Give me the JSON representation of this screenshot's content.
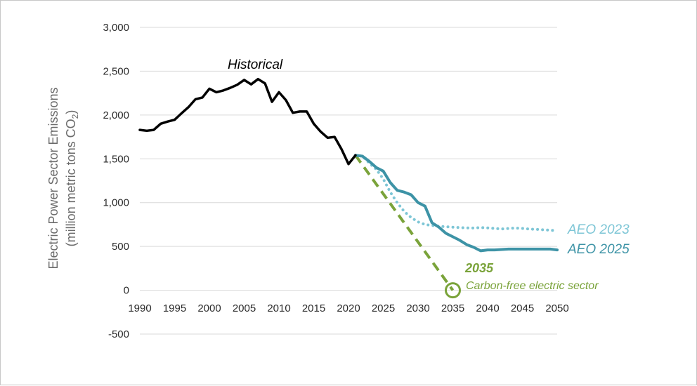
{
  "chart_data": {
    "type": "line",
    "title": "",
    "xlabel": "",
    "ylabel_line1": "Electric Power Sector Emissions",
    "ylabel_line2_prefix": "(million metric tons CO",
    "ylabel_line2_sub": "2",
    "ylabel_line2_suffix": ")",
    "xlim": [
      1990,
      2050
    ],
    "ylim": [
      -500,
      3000
    ],
    "x_ticks": [
      "1990",
      "1995",
      "2000",
      "2005",
      "2010",
      "2015",
      "2020",
      "2025",
      "2030",
      "2035",
      "2040",
      "2045",
      "2050"
    ],
    "y_ticks": [
      "-500",
      "0",
      "500",
      "1,000",
      "1,500",
      "2,000",
      "2,500",
      "3,000"
    ],
    "grid": true,
    "annotations": {
      "historical": "Historical",
      "aeo2023": "AEO 2023",
      "aeo2025": "AEO 2025",
      "target_year": "2035",
      "target_text": "Carbon-free electric sector"
    },
    "colors": {
      "historical": "#000000",
      "aeo2023": "#7ec6d6",
      "aeo2025": "#3d93a6",
      "target": "#7aa33a",
      "grid": "#d9d9d9"
    },
    "series": [
      {
        "id": "historical",
        "x": [
          1990,
          1991,
          1992,
          1993,
          1994,
          1995,
          1996,
          1997,
          1998,
          1999,
          2000,
          2001,
          2002,
          2003,
          2004,
          2005,
          2006,
          2007,
          2008,
          2009,
          2010,
          2011,
          2012,
          2013,
          2014,
          2015,
          2016,
          2017,
          2018,
          2019,
          2020,
          2021
        ],
        "y": [
          1830,
          1820,
          1830,
          1900,
          1925,
          1945,
          2020,
          2090,
          2180,
          2200,
          2300,
          2260,
          2280,
          2310,
          2345,
          2400,
          2350,
          2410,
          2360,
          2150,
          2260,
          2170,
          2025,
          2040,
          2040,
          1900,
          1810,
          1740,
          1750,
          1610,
          1440,
          1540
        ]
      },
      {
        "id": "aeo2023",
        "x": [
          2021,
          2022,
          2023,
          2024,
          2025,
          2026,
          2027,
          2028,
          2029,
          2030,
          2031,
          2032,
          2033,
          2034,
          2035,
          2036,
          2037,
          2038,
          2039,
          2040,
          2041,
          2042,
          2043,
          2044,
          2045,
          2046,
          2047,
          2048,
          2049,
          2050
        ],
        "y": [
          1540,
          1530,
          1450,
          1380,
          1270,
          1120,
          1000,
          900,
          830,
          780,
          750,
          740,
          730,
          725,
          720,
          715,
          712,
          710,
          715,
          712,
          705,
          700,
          705,
          710,
          705,
          698,
          695,
          690,
          685,
          680
        ]
      },
      {
        "id": "aeo2025",
        "x": [
          2021,
          2022,
          2023,
          2024,
          2025,
          2026,
          2027,
          2028,
          2029,
          2030,
          2031,
          2032,
          2033,
          2034,
          2035,
          2036,
          2037,
          2038,
          2039,
          2040,
          2041,
          2042,
          2043,
          2044,
          2045,
          2046,
          2047,
          2048,
          2049,
          2050
        ],
        "y": [
          1540,
          1530,
          1470,
          1400,
          1360,
          1230,
          1140,
          1120,
          1090,
          1000,
          960,
          770,
          720,
          650,
          610,
          570,
          520,
          490,
          450,
          460,
          460,
          465,
          470,
          470,
          470,
          470,
          470,
          470,
          470,
          460
        ]
      },
      {
        "id": "target",
        "x": [
          2021,
          2035
        ],
        "y": [
          1540,
          0
        ]
      }
    ]
  }
}
